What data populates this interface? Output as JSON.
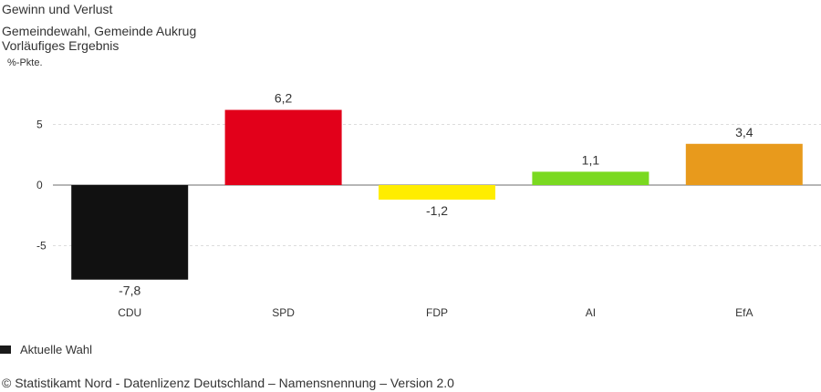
{
  "header": {
    "title": "Gewinn und Verlust",
    "subtitle_line1": "Gemeindewahl, Gemeinde Aukrug",
    "subtitle_line2": "Vorläufiges Ergebnis",
    "unit": "%-Pkte."
  },
  "legend": {
    "label": "Aktuelle Wahl",
    "color": "#1a1a1a"
  },
  "footer": {
    "text": "© Statistikamt Nord - Datenlizenz Deutschland – Namensnennung – Version 2.0"
  },
  "chart_data": {
    "type": "bar",
    "categories": [
      "CDU",
      "SPD",
      "FDP",
      "AI",
      "EfA"
    ],
    "values": [
      -7.8,
      6.2,
      -1.2,
      1.1,
      3.4
    ],
    "value_labels": [
      "-7,8",
      "6,2",
      "-1,2",
      "1,1",
      "3,4"
    ],
    "colors": [
      "#111111",
      "#e2001a",
      "#ffed00",
      "#7ad920",
      "#e89a1c"
    ],
    "ylim": [
      -8.5,
      7.5
    ],
    "yticks": [
      5,
      0,
      -5
    ],
    "ytick_labels": [
      "5",
      "0",
      "-5"
    ],
    "ylabel": "%-Pkte.",
    "grid": true
  }
}
